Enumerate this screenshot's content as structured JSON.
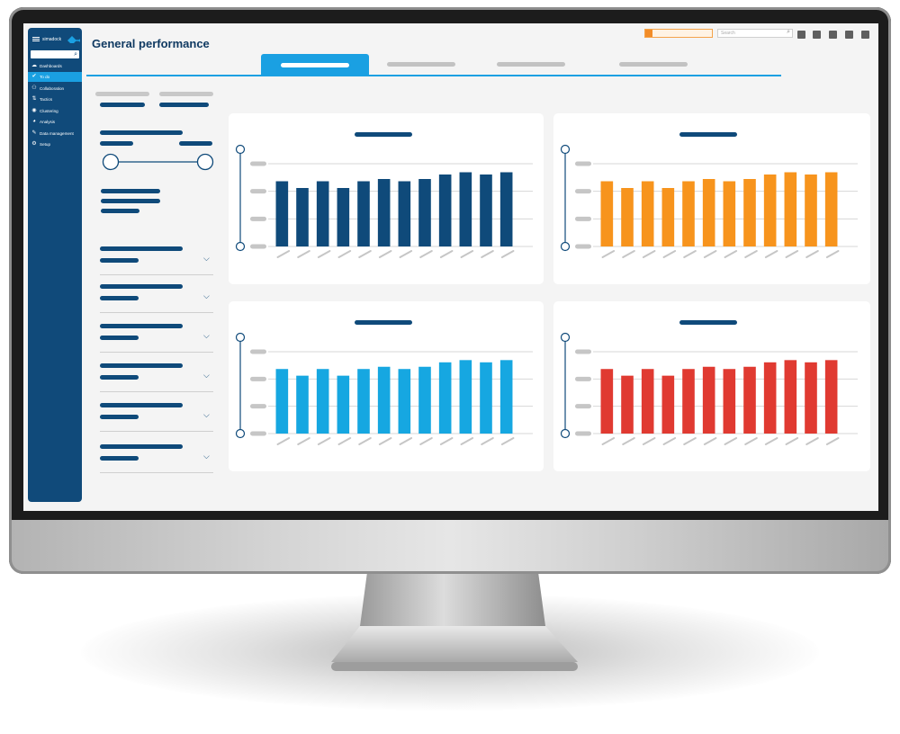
{
  "app": {
    "logo_text": "simadock",
    "page_title": "General performance",
    "search_placeholder": "Search"
  },
  "sidebar": {
    "items": [
      {
        "label": "Dashboards",
        "icon": "cloud-icon",
        "active": false
      },
      {
        "label": "To do",
        "icon": "check-icon",
        "active": true
      },
      {
        "label": "Collaboration",
        "icon": "people-icon",
        "active": false
      },
      {
        "label": "Tactics",
        "icon": "tactics-icon",
        "active": false
      },
      {
        "label": "Clustering",
        "icon": "eye-icon",
        "active": false
      },
      {
        "label": "Analysis",
        "icon": "pie-icon",
        "active": false
      },
      {
        "label": "Data management",
        "icon": "wrench-icon",
        "active": false
      },
      {
        "label": "Setup",
        "icon": "gear-icon",
        "active": false
      }
    ]
  },
  "colors": {
    "brand_navy": "#0f4a7a",
    "accent_blue": "#1aa0e2",
    "orange": "#f7941d",
    "light_blue": "#16a7e1",
    "red": "#e03a31"
  },
  "chart_data": [
    {
      "type": "bar",
      "color": "#0f4a7a",
      "values": [
        29,
        26,
        29,
        26,
        29,
        30,
        29,
        30,
        32,
        33,
        32,
        33
      ],
      "ylim": [
        0,
        40
      ]
    },
    {
      "type": "bar",
      "color": "#f7941d",
      "values": [
        29,
        26,
        29,
        26,
        29,
        30,
        29,
        30,
        32,
        33,
        32,
        33
      ],
      "ylim": [
        0,
        40
      ]
    },
    {
      "type": "bar",
      "color": "#16a7e1",
      "values": [
        29,
        26,
        29,
        26,
        29,
        30,
        29,
        30,
        32,
        33,
        32,
        33
      ],
      "ylim": [
        0,
        40
      ]
    },
    {
      "type": "bar",
      "color": "#e03a31",
      "values": [
        29,
        26,
        29,
        26,
        29,
        30,
        29,
        30,
        32,
        33,
        32,
        33
      ],
      "ylim": [
        0,
        40
      ]
    }
  ]
}
